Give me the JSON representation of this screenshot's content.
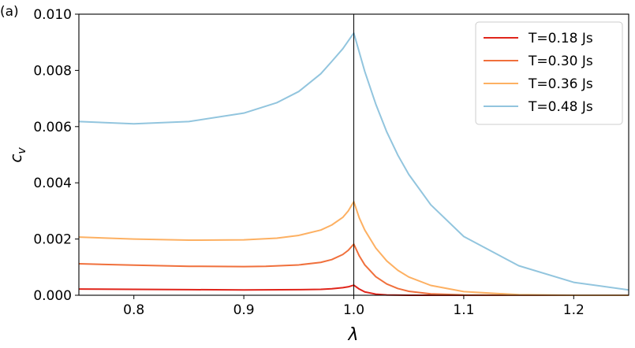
{
  "panel_label": "(a)",
  "chart_data": {
    "type": "line",
    "xlabel": "λ",
    "ylabel": "c_v",
    "xlim": [
      0.75,
      1.25
    ],
    "ylim": [
      0.0,
      0.01
    ],
    "xticks": [
      0.8,
      0.9,
      1.0,
      1.1,
      1.2
    ],
    "xtick_labels": [
      "0.8",
      "0.9",
      "1.0",
      "1.1",
      "1.2"
    ],
    "yticks": [
      0.0,
      0.002,
      0.004,
      0.006,
      0.008,
      0.01
    ],
    "ytick_labels": [
      "0.000",
      "0.002",
      "0.004",
      "0.006",
      "0.008",
      "0.010"
    ],
    "vline_x": 1.0,
    "grid": false,
    "legend_position": "top-right",
    "series": [
      {
        "name": "T=0.18 Js",
        "color": "#e0251b",
        "x": [
          0.75,
          0.8,
          0.85,
          0.9,
          0.95,
          0.97,
          0.98,
          0.99,
          0.995,
          1.0,
          1.005,
          1.01,
          1.02,
          1.03,
          1.05,
          1.1,
          1.15,
          1.2,
          1.25
        ],
        "y": [
          0.00022,
          0.00021,
          0.0002,
          0.00019,
          0.0002,
          0.00021,
          0.00023,
          0.00027,
          0.0003,
          0.00036,
          0.00022,
          0.00012,
          4e-05,
          1e-05,
          0.0,
          0.0,
          0.0,
          0.0,
          0.0
        ]
      },
      {
        "name": "T=0.30 Js",
        "color": "#f0703c",
        "x": [
          0.75,
          0.8,
          0.85,
          0.9,
          0.92,
          0.95,
          0.97,
          0.98,
          0.99,
          0.995,
          1.0,
          1.005,
          1.01,
          1.02,
          1.03,
          1.04,
          1.05,
          1.07,
          1.1,
          1.15,
          1.2,
          1.25
        ],
        "y": [
          0.00112,
          0.00107,
          0.00103,
          0.00102,
          0.00103,
          0.00108,
          0.00117,
          0.00127,
          0.00145,
          0.0016,
          0.00182,
          0.0014,
          0.00108,
          0.00066,
          0.0004,
          0.00024,
          0.00014,
          5e-05,
          1e-05,
          0.0,
          0.0,
          0.0
        ]
      },
      {
        "name": "T=0.36 Js",
        "color": "#fdb062",
        "x": [
          0.75,
          0.8,
          0.85,
          0.9,
          0.93,
          0.95,
          0.97,
          0.98,
          0.99,
          0.995,
          1.0,
          1.005,
          1.01,
          1.02,
          1.03,
          1.04,
          1.05,
          1.07,
          1.1,
          1.15,
          1.2,
          1.25
        ],
        "y": [
          0.00207,
          0.002,
          0.00196,
          0.00197,
          0.00203,
          0.00213,
          0.00232,
          0.0025,
          0.00277,
          0.003,
          0.00333,
          0.00275,
          0.00232,
          0.00168,
          0.00122,
          0.00089,
          0.00065,
          0.00035,
          0.00013,
          2e-05,
          0.0,
          0.0
        ]
      },
      {
        "name": "T=0.48 Js",
        "color": "#92c5de",
        "x": [
          0.75,
          0.8,
          0.85,
          0.9,
          0.93,
          0.95,
          0.97,
          0.98,
          0.99,
          1.0,
          1.01,
          1.02,
          1.03,
          1.04,
          1.05,
          1.07,
          1.1,
          1.15,
          1.2,
          1.25
        ],
        "y": [
          0.00618,
          0.0061,
          0.00618,
          0.00648,
          0.00685,
          0.00725,
          0.00788,
          0.00832,
          0.00877,
          0.00933,
          0.00796,
          0.0068,
          0.00581,
          0.00499,
          0.0043,
          0.00322,
          0.00209,
          0.00105,
          0.00046,
          0.00019
        ]
      }
    ]
  }
}
